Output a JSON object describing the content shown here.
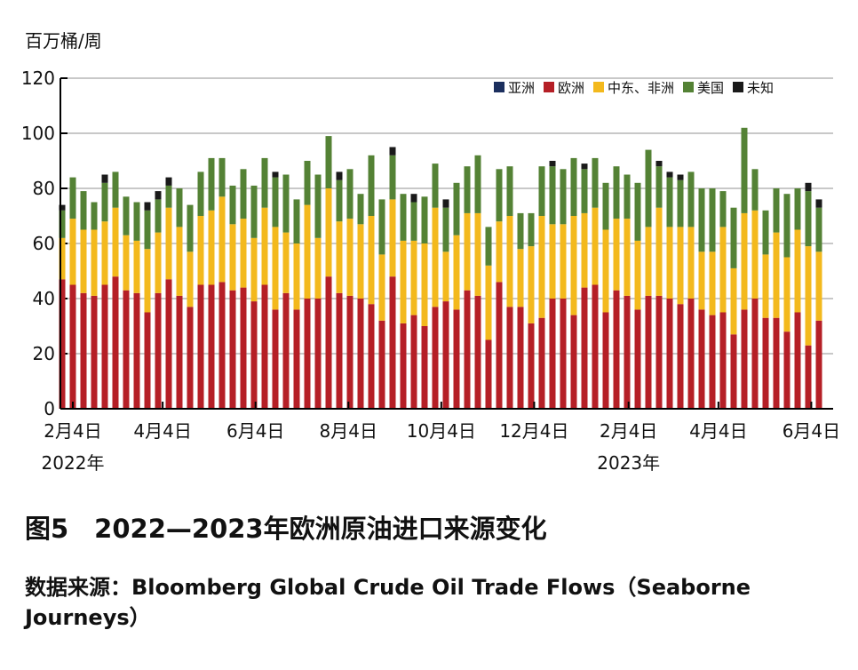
{
  "figure_title": "图5　2022—2023年欧洲原油进口来源变化",
  "source": "数据来源：Bloomberg Global Crude Oil Trade Flows（Seaborne Journeys）",
  "chart_data": {
    "type": "bar",
    "stacked": true,
    "ylabel": "百万桶/周",
    "ylim": [
      0,
      120
    ],
    "yticks": [
      0,
      20,
      40,
      60,
      80,
      100,
      120
    ],
    "grid": true,
    "legend_position": "top-right",
    "start_week": "2022-01-28",
    "xticks": [
      {
        "date": "2022-02-04",
        "label": "2月4日",
        "year": "2022年"
      },
      {
        "date": "2022-04-04",
        "label": "4月4日"
      },
      {
        "date": "2022-06-04",
        "label": "6月4日"
      },
      {
        "date": "2022-08-04",
        "label": "8月4日"
      },
      {
        "date": "2022-10-04",
        "label": "10月4日"
      },
      {
        "date": "2022-12-04",
        "label": "12月4日"
      },
      {
        "date": "2023-02-04",
        "label": "2月4日",
        "year": "2023年"
      },
      {
        "date": "2023-04-04",
        "label": "4月4日"
      },
      {
        "date": "2023-06-04",
        "label": "6月4日"
      }
    ],
    "series": [
      {
        "name": "亚洲",
        "color": "#1c2f5e",
        "values": [
          0,
          0,
          0,
          0,
          0,
          0,
          0,
          0,
          0,
          0,
          0,
          0,
          0,
          0,
          0,
          0,
          0,
          0,
          0,
          0,
          0,
          0,
          0,
          0,
          0,
          0,
          0,
          0,
          0,
          0,
          0,
          0,
          0,
          0,
          0,
          0,
          0,
          0,
          0,
          0,
          0,
          0,
          0,
          0,
          0,
          0,
          0,
          0,
          0,
          0,
          0,
          0,
          0,
          0,
          0,
          0,
          0,
          0,
          0,
          0,
          0,
          0,
          0,
          0,
          0,
          0,
          0,
          0,
          0,
          0,
          0,
          0
        ]
      },
      {
        "name": "欧洲",
        "color": "#b51f26",
        "values": [
          47,
          45,
          42,
          41,
          45,
          48,
          43,
          42,
          35,
          42,
          47,
          41,
          37,
          45,
          45,
          46,
          43,
          44,
          39,
          45,
          36,
          42,
          36,
          40,
          40,
          48,
          42,
          41,
          40,
          38,
          32,
          48,
          31,
          34,
          30,
          37,
          39,
          36,
          43,
          41,
          25,
          46,
          37,
          37,
          31,
          33,
          40,
          40,
          34,
          44,
          45,
          35,
          43,
          41,
          36,
          41,
          41,
          40,
          38,
          40,
          36,
          34,
          35,
          27,
          36,
          40,
          33,
          33,
          28,
          35,
          23,
          32
        ]
      },
      {
        "name": "中东、非洲",
        "color": "#f3b91d",
        "values": [
          15,
          24,
          23,
          24,
          23,
          25,
          20,
          19,
          23,
          22,
          26,
          25,
          20,
          25,
          27,
          31,
          24,
          25,
          23,
          28,
          30,
          22,
          24,
          34,
          22,
          32,
          26,
          28,
          27,
          32,
          24,
          28,
          30,
          27,
          30,
          36,
          18,
          27,
          28,
          30,
          27,
          22,
          33,
          21,
          28,
          37,
          27,
          27,
          36,
          27,
          28,
          30,
          26,
          28,
          25,
          25,
          32,
          26,
          28,
          26,
          21,
          23,
          31,
          24,
          35,
          32,
          23,
          31,
          27,
          30,
          36,
          25
        ]
      },
      {
        "name": "美国",
        "color": "#548235",
        "values": [
          10,
          15,
          14,
          10,
          14,
          13,
          14,
          14,
          14,
          12,
          8,
          14,
          17,
          16,
          19,
          14,
          14,
          18,
          19,
          18,
          18,
          21,
          16,
          16,
          23,
          19,
          15,
          18,
          11,
          22,
          20,
          16,
          17,
          14,
          17,
          16,
          16,
          19,
          17,
          21,
          14,
          19,
          18,
          13,
          12,
          18,
          21,
          20,
          21,
          16,
          18,
          17,
          19,
          16,
          21,
          28,
          15,
          18,
          17,
          20,
          23,
          23,
          13,
          22,
          31,
          15,
          16,
          16,
          23,
          15,
          20,
          16
        ]
      },
      {
        "name": "未知",
        "color": "#1a1a1a",
        "values": [
          2,
          0,
          0,
          0,
          3,
          0,
          0,
          0,
          3,
          3,
          3,
          0,
          0,
          0,
          0,
          0,
          0,
          0,
          0,
          0,
          2,
          0,
          0,
          0,
          0,
          0,
          3,
          0,
          0,
          0,
          0,
          3,
          0,
          3,
          0,
          0,
          3,
          0,
          0,
          0,
          0,
          0,
          0,
          0,
          0,
          0,
          2,
          0,
          0,
          2,
          0,
          0,
          0,
          0,
          0,
          0,
          2,
          2,
          2,
          0,
          0,
          0,
          0,
          0,
          0,
          0,
          0,
          0,
          0,
          0,
          3,
          3
        ]
      }
    ]
  }
}
